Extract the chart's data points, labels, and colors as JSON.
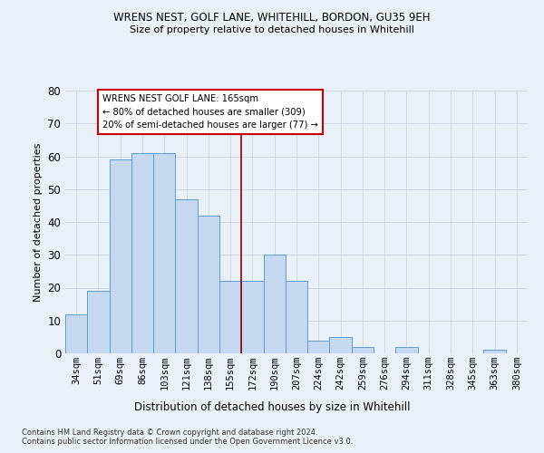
{
  "title1": "WRENS NEST, GOLF LANE, WHITEHILL, BORDON, GU35 9EH",
  "title2": "Size of property relative to detached houses in Whitehill",
  "xlabel": "Distribution of detached houses by size in Whitehill",
  "ylabel": "Number of detached properties",
  "categories": [
    "34sqm",
    "51sqm",
    "69sqm",
    "86sqm",
    "103sqm",
    "121sqm",
    "138sqm",
    "155sqm",
    "172sqm",
    "190sqm",
    "207sqm",
    "224sqm",
    "242sqm",
    "259sqm",
    "276sqm",
    "294sqm",
    "311sqm",
    "328sqm",
    "345sqm",
    "363sqm",
    "380sqm"
  ],
  "values": [
    12,
    19,
    59,
    61,
    61,
    47,
    42,
    22,
    22,
    30,
    22,
    4,
    5,
    2,
    0,
    2,
    0,
    0,
    0,
    1,
    0
  ],
  "bar_color": "#c5d8f0",
  "bar_edge_color": "#5b9bd5",
  "vline_color": "#8b0000",
  "vline_x_index": 7.5,
  "annotation_text_line1": "WRENS NEST GOLF LANE: 165sqm",
  "annotation_text_line2": "← 80% of detached houses are smaller (309)",
  "annotation_text_line3": "20% of semi-detached houses are larger (77) →",
  "annotation_box_color": "#ffffff",
  "annotation_box_edge_color": "#cc0000",
  "ylim": [
    0,
    80
  ],
  "yticks": [
    0,
    10,
    20,
    30,
    40,
    50,
    60,
    70,
    80
  ],
  "grid_color": "#d0d8e8",
  "background_color": "#eaf0f8",
  "footer1": "Contains HM Land Registry data © Crown copyright and database right 2024.",
  "footer2": "Contains public sector information licensed under the Open Government Licence v3.0."
}
